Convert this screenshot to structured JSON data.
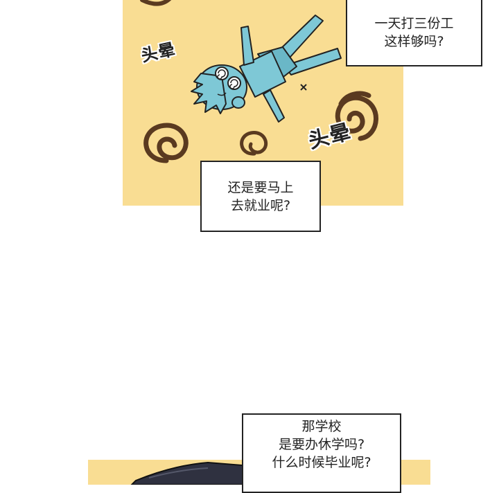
{
  "bubbles": {
    "top_right": {
      "line1": "一天打三份工",
      "line2": "这样够吗?"
    },
    "middle": {
      "line1": "还是要马上",
      "line2": "去就业呢?"
    },
    "bottom": {
      "line1": "那学校",
      "line2": "是要办休学吗?",
      "line3": "什么时候毕业呢?"
    }
  },
  "sound_effects": {
    "dizzy_left": "头晕",
    "dizzy_right": "头晕"
  },
  "colors": {
    "panel_bg": "#f9dd93",
    "swirl": "#5a3a20",
    "character": "#7ec8d6",
    "outline": "#222222"
  }
}
